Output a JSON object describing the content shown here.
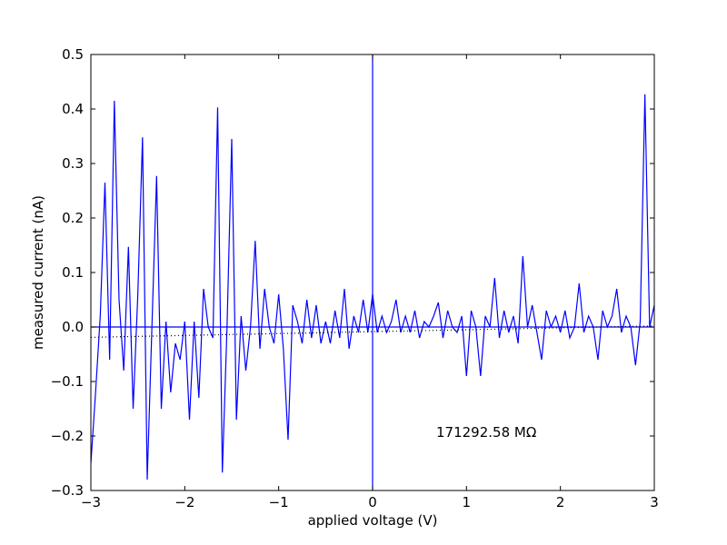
{
  "chart_data": {
    "type": "line",
    "xlabel": "applied voltage (V)",
    "ylabel": "measured current (nA)",
    "annotation": "171292.58 MΩ",
    "xlim": [
      -3,
      3
    ],
    "ylim": [
      -0.3,
      0.5
    ],
    "xticks": [
      {
        "value": -3,
        "label": "−3"
      },
      {
        "value": -2,
        "label": "−2"
      },
      {
        "value": -1,
        "label": "−1"
      },
      0,
      1,
      2,
      3
    ],
    "yticks": [
      {
        "value": -0.3,
        "label": "−0.3"
      },
      {
        "value": -0.2,
        "label": "−0.2"
      },
      {
        "value": -0.1,
        "label": "−0.1"
      },
      {
        "value": 0,
        "label": "0.0"
      },
      0.1,
      0.2,
      0.3,
      0.4,
      0.5
    ],
    "series": [
      {
        "color": "#0000ff",
        "linestyle": "solid",
        "x": [
          -3.0,
          -2.95,
          -2.9,
          -2.85,
          -2.8,
          -2.75,
          -2.7,
          -2.65,
          -2.6,
          -2.55,
          -2.5,
          -2.45,
          -2.4,
          -2.35,
          -2.3,
          -2.25,
          -2.2,
          -2.15,
          -2.1,
          -2.05,
          -2.0,
          -1.95,
          -1.9,
          -1.85,
          -1.8,
          -1.75,
          -1.7,
          -1.65,
          -1.6,
          -1.55,
          -1.5,
          -1.45,
          -1.4,
          -1.35,
          -1.3,
          -1.25,
          -1.2,
          -1.15,
          -1.1,
          -1.05,
          -1.0,
          -0.95,
          -0.9,
          -0.85,
          -0.8,
          -0.75,
          -0.7,
          -0.65,
          -0.6,
          -0.55,
          -0.5,
          -0.45,
          -0.4,
          -0.35,
          -0.3,
          -0.25,
          -0.2,
          -0.15,
          -0.1,
          -0.05,
          0.0,
          0.05,
          0.1,
          0.15,
          0.2,
          0.25,
          0.3,
          0.35,
          0.4,
          0.45,
          0.5,
          0.55,
          0.6,
          0.65,
          0.7,
          0.75,
          0.8,
          0.85,
          0.9,
          0.95,
          1.0,
          1.05,
          1.1,
          1.15,
          1.2,
          1.25,
          1.3,
          1.35,
          1.4,
          1.45,
          1.5,
          1.55,
          1.6,
          1.65,
          1.7,
          1.75,
          1.8,
          1.85,
          1.9,
          1.95,
          2.0,
          2.05,
          2.1,
          2.15,
          2.2,
          2.25,
          2.3,
          2.35,
          2.4,
          2.45,
          2.5,
          2.55,
          2.6,
          2.65,
          2.7,
          2.75,
          2.8,
          2.85,
          2.9,
          2.95,
          3.0
        ],
        "values": [
          -0.25,
          -0.12,
          0.02,
          0.265,
          -0.06,
          0.415,
          0.05,
          -0.08,
          0.147,
          -0.15,
          0.06,
          0.348,
          -0.28,
          0.0,
          0.277,
          -0.15,
          0.01,
          -0.12,
          -0.03,
          -0.06,
          0.01,
          -0.17,
          0.01,
          -0.13,
          0.07,
          0.0,
          -0.02,
          0.403,
          -0.267,
          0.0,
          0.345,
          -0.17,
          0.02,
          -0.08,
          0.0,
          0.158,
          -0.04,
          0.07,
          0.0,
          -0.03,
          0.06,
          -0.04,
          -0.207,
          0.04,
          0.01,
          -0.03,
          0.05,
          -0.02,
          0.04,
          -0.03,
          0.01,
          -0.03,
          0.03,
          -0.02,
          0.07,
          -0.04,
          0.02,
          -0.01,
          0.05,
          -0.01,
          0.06,
          -0.01,
          0.02,
          -0.01,
          0.01,
          0.05,
          -0.01,
          0.02,
          -0.01,
          0.03,
          -0.02,
          0.01,
          0.0,
          0.02,
          0.045,
          -0.02,
          0.03,
          0.0,
          -0.01,
          0.02,
          -0.09,
          0.03,
          0.0,
          -0.09,
          0.02,
          0.0,
          0.09,
          -0.02,
          0.03,
          -0.01,
          0.02,
          -0.03,
          0.13,
          0.0,
          0.04,
          -0.01,
          -0.06,
          0.03,
          0.0,
          0.02,
          -0.01,
          0.03,
          -0.02,
          0.0,
          0.08,
          -0.01,
          0.02,
          0.0,
          -0.06,
          0.03,
          0.0,
          0.02,
          0.07,
          -0.01,
          0.02,
          0.0,
          -0.07,
          0.01,
          0.427,
          0.0,
          0.04
        ]
      },
      {
        "color": "#0000ff",
        "linestyle": "solid",
        "x": [
          -3,
          3
        ],
        "values": [
          0,
          0
        ]
      },
      {
        "color": "#0000ff",
        "linestyle": "solid",
        "x": [
          0,
          0
        ],
        "values": [
          -0.3,
          0.5
        ]
      },
      {
        "color": "#000000",
        "linestyle": "dotted",
        "x": [
          -3,
          3
        ],
        "values": [
          -0.019,
          0.002
        ]
      }
    ]
  }
}
